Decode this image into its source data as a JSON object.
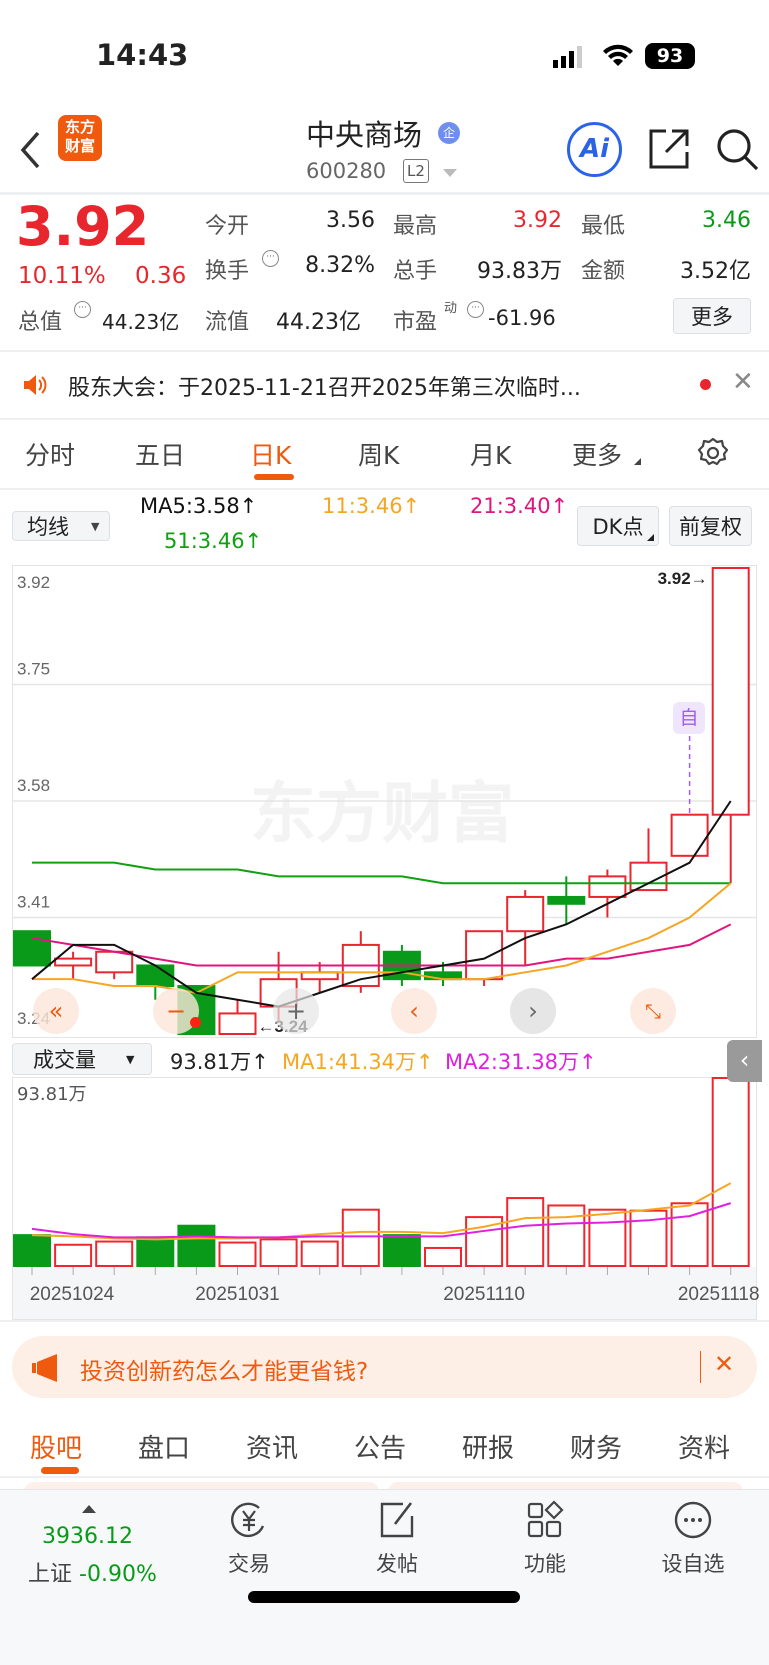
{
  "status": {
    "time": "14:43",
    "battery": "93"
  },
  "header": {
    "logo": "东方财富",
    "title": "中央商场",
    "badge": "企",
    "code": "600280",
    "level": "L2",
    "ai": "Ai"
  },
  "quote": {
    "price": "3.92",
    "pct": "10.11%",
    "chg": "0.36",
    "rows": [
      [
        {
          "label": "今开",
          "value": "3.56",
          "color": "#222"
        },
        {
          "label": "最高",
          "value": "3.92",
          "color": "#e8262d"
        },
        {
          "label": "最低",
          "value": "3.46",
          "color": "#0a9a1a"
        }
      ],
      [
        {
          "label": "换手",
          "value": "8.32%",
          "color": "#222"
        },
        {
          "label": "总手",
          "value": "93.83万",
          "color": "#222"
        },
        {
          "label": "金额",
          "value": "3.52亿",
          "color": "#222"
        }
      ]
    ],
    "total_label": "总值",
    "total_value": "44.23亿",
    "float_label": "流值",
    "float_value": "44.23亿",
    "pe_label": "市盈",
    "pe_sup": "动",
    "pe_value": "-61.96",
    "more": "更多"
  },
  "notice": {
    "text": "股东大会：于2025-11-21召开2025年第三次临时..."
  },
  "tabs": [
    "分时",
    "五日",
    "日K",
    "周K",
    "月K",
    "更多"
  ],
  "active_tab": "日K",
  "ma_legend": {
    "select": "均线",
    "ma5": "MA5:3.58↑",
    "ma11": "11:3.46↑",
    "ma21": "21:3.40↑",
    "ma51": "51:3.46↑",
    "dk": "DK点",
    "adjust": "前复权"
  },
  "vol_legend": {
    "select": "成交量",
    "vol": "93.81万↑",
    "ma1": "MA1:41.34万↑",
    "ma2": "MA2:31.38万↑"
  },
  "watermark": "东方财富",
  "chart_data": [
    {
      "type": "candlestick",
      "y_ticks": [
        "3.92",
        "3.75",
        "3.58",
        "3.41",
        "3.24"
      ],
      "ylim": [
        3.24,
        3.92
      ],
      "colors": {
        "up": "#e8262d",
        "down": "#0a9a1a",
        "ma5": "#111111",
        "ma11": "#f5a623",
        "ma21": "#e0157e",
        "ma51": "#10a010"
      },
      "candles": [
        {
          "o": 3.39,
          "h": 3.39,
          "l": 3.34,
          "c": 3.34
        },
        {
          "o": 3.34,
          "h": 3.36,
          "l": 3.32,
          "c": 3.35
        },
        {
          "o": 3.33,
          "h": 3.36,
          "l": 3.32,
          "c": 3.36
        },
        {
          "o": 3.34,
          "h": 3.34,
          "l": 3.29,
          "c": 3.31
        },
        {
          "o": 3.31,
          "h": 3.31,
          "l": 3.24,
          "c": 3.24
        },
        {
          "o": 3.24,
          "h": 3.29,
          "l": 3.24,
          "c": 3.27
        },
        {
          "o": 3.28,
          "h": 3.36,
          "l": 3.26,
          "c": 3.32
        },
        {
          "o": 3.32,
          "h": 3.345,
          "l": 3.3,
          "c": 3.33
        },
        {
          "o": 3.31,
          "h": 3.39,
          "l": 3.3,
          "c": 3.37
        },
        {
          "o": 3.36,
          "h": 3.37,
          "l": 3.31,
          "c": 3.32
        },
        {
          "o": 3.33,
          "h": 3.345,
          "l": 3.31,
          "c": 3.32
        },
        {
          "o": 3.32,
          "h": 3.39,
          "l": 3.31,
          "c": 3.39
        },
        {
          "o": 3.39,
          "h": 3.45,
          "l": 3.34,
          "c": 3.44
        },
        {
          "o": 3.44,
          "h": 3.47,
          "l": 3.4,
          "c": 3.43
        },
        {
          "o": 3.44,
          "h": 3.48,
          "l": 3.41,
          "c": 3.47
        },
        {
          "o": 3.45,
          "h": 3.54,
          "l": 3.45,
          "c": 3.49
        },
        {
          "o": 3.5,
          "h": 3.56,
          "l": 3.5,
          "c": 3.56
        },
        {
          "o": 3.56,
          "h": 3.92,
          "l": 3.46,
          "c": 3.92
        }
      ],
      "ma5": [
        3.32,
        3.37,
        3.37,
        3.34,
        3.3,
        3.29,
        3.28,
        3.3,
        3.32,
        3.33,
        3.34,
        3.35,
        3.38,
        3.4,
        3.43,
        3.46,
        3.49,
        3.58
      ],
      "ma11": [
        3.32,
        3.32,
        3.31,
        3.31,
        3.3,
        3.33,
        3.33,
        3.33,
        3.33,
        3.33,
        3.32,
        3.32,
        3.33,
        3.34,
        3.36,
        3.38,
        3.41,
        3.46
      ],
      "ma21": [
        3.38,
        3.37,
        3.36,
        3.35,
        3.34,
        3.34,
        3.34,
        3.34,
        3.34,
        3.34,
        3.34,
        3.34,
        3.34,
        3.35,
        3.35,
        3.36,
        3.37,
        3.4
      ],
      "ma51": [
        3.49,
        3.49,
        3.49,
        3.48,
        3.48,
        3.48,
        3.47,
        3.47,
        3.47,
        3.47,
        3.46,
        3.46,
        3.46,
        3.46,
        3.46,
        3.46,
        3.46,
        3.46
      ],
      "annotations": {
        "high": "3.92→",
        "low": "←3.24",
        "marker": "自"
      }
    },
    {
      "type": "bar",
      "title": "成交量",
      "unit": "万",
      "ymax_label": "93.81万",
      "ylim": [
        0,
        93.81
      ],
      "values": [
        15.4,
        10.6,
        12.2,
        14.3,
        20.1,
        11.7,
        13.3,
        12.2,
        28.1,
        15.4,
        9.0,
        24.4,
        33.9,
        30.2,
        28.1,
        27.6,
        31.3,
        93.81
      ],
      "up": [
        false,
        true,
        true,
        false,
        false,
        true,
        true,
        true,
        true,
        false,
        true,
        true,
        true,
        true,
        true,
        true,
        true,
        true
      ],
      "ma1": [
        15.4,
        14.8,
        13.8,
        13.3,
        13.8,
        13.8,
        14.3,
        15.9,
        17.0,
        17.0,
        16.4,
        19.6,
        23.9,
        24.4,
        26.0,
        28.1,
        30.2,
        41.34
      ],
      "ma2": [
        18.5,
        15.9,
        14.3,
        14.3,
        14.8,
        14.3,
        14.3,
        14.8,
        14.8,
        14.8,
        14.8,
        17.5,
        20.1,
        21.2,
        21.7,
        22.8,
        24.9,
        31.38
      ],
      "colors": {
        "ma1": "#f5a623",
        "ma2": "#e020e0"
      },
      "x_ticks": [
        {
          "index": 1,
          "label": "20251024"
        },
        {
          "index": 5,
          "label": "20251031"
        },
        {
          "index": 11,
          "label": "20251110"
        },
        {
          "index": 17,
          "label": "20251118"
        }
      ]
    }
  ],
  "ad": {
    "text": "投资创新药怎么才能更省钱?"
  },
  "sub_tabs": [
    "股吧",
    "盘口",
    "资讯",
    "公告",
    "研报",
    "财务",
    "资料"
  ],
  "bottom_nav": {
    "index_value": "3936.12",
    "index_name": "上证",
    "index_change": "-0.90%",
    "items": [
      "交易",
      "发帖",
      "功能",
      "设自选"
    ]
  },
  "accent": "#f05a0f"
}
